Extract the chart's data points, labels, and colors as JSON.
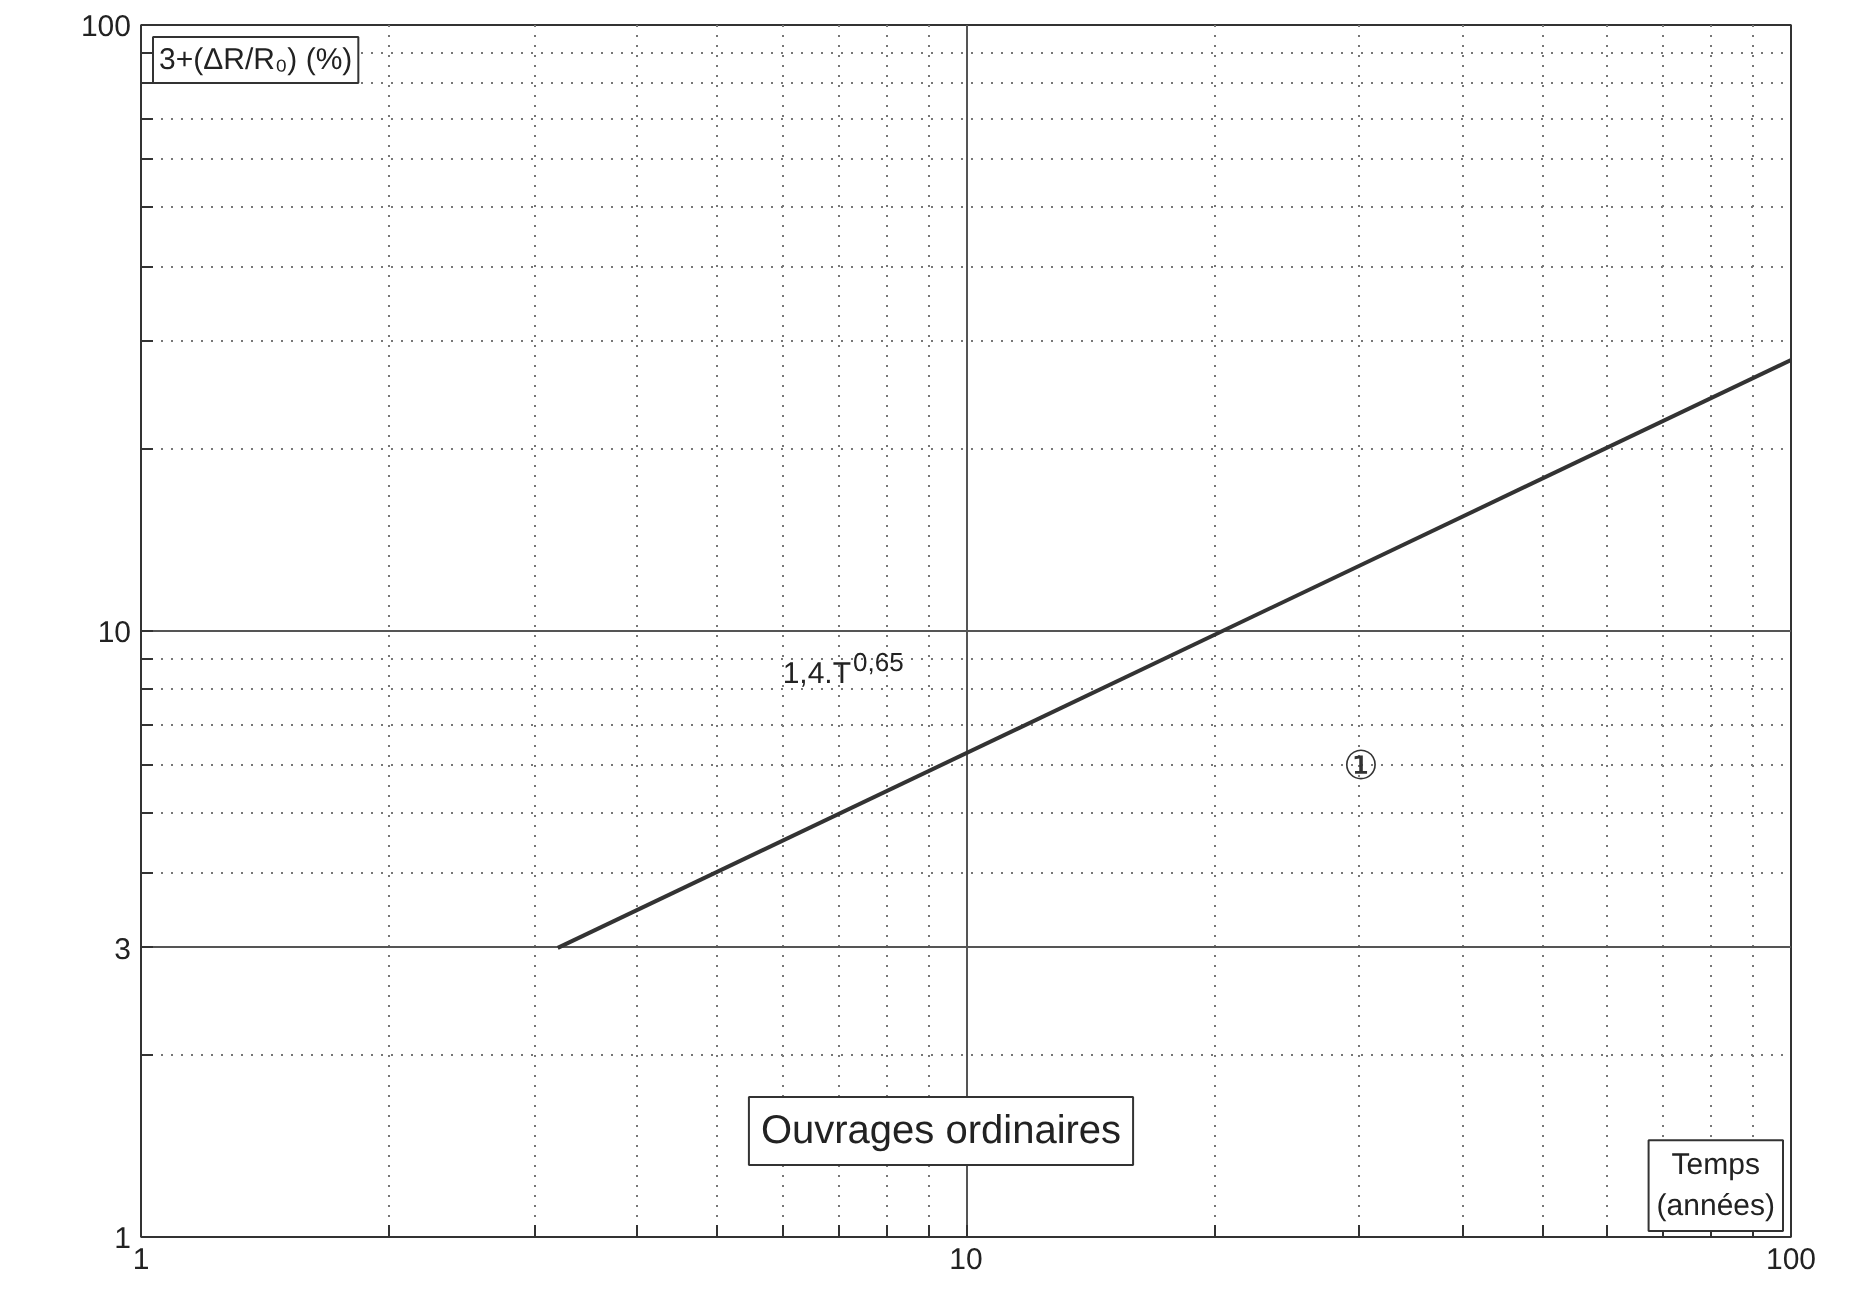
{
  "chart_data": {
    "type": "line",
    "xlabel": "Temps (années)",
    "ylabel": "3+(ΔR/R₀) (%)",
    "log": "xy",
    "xlim": [
      1,
      100
    ],
    "ylim": [
      1,
      100
    ],
    "xticks": [
      1,
      {
        "value": 2,
        "label": null
      },
      {
        "value": 3,
        "label": null
      },
      {
        "value": 4,
        "label": null
      },
      {
        "value": 5,
        "label": null
      },
      {
        "value": 6,
        "label": null
      },
      {
        "value": 7,
        "label": null
      },
      {
        "value": 8,
        "label": null
      },
      {
        "value": 9,
        "label": null
      },
      10,
      {
        "value": 20,
        "label": null
      },
      {
        "value": 30,
        "label": null
      },
      {
        "value": 40,
        "label": null
      },
      {
        "value": 50,
        "label": null
      },
      {
        "value": 60,
        "label": null
      },
      {
        "value": 70,
        "label": null
      },
      {
        "value": 80,
        "label": null
      },
      {
        "value": 90,
        "label": null
      },
      100
    ],
    "yticks": [
      1,
      {
        "value": 2,
        "label": null
      },
      3,
      {
        "value": 4,
        "label": null
      },
      {
        "value": 5,
        "label": null
      },
      {
        "value": 6,
        "label": null
      },
      {
        "value": 7,
        "label": null
      },
      {
        "value": 8,
        "label": null
      },
      {
        "value": 9,
        "label": null
      },
      10,
      {
        "value": 20,
        "label": null
      },
      {
        "value": 30,
        "label": null
      },
      {
        "value": 40,
        "label": null
      },
      {
        "value": 50,
        "label": null
      },
      {
        "value": 60,
        "label": null
      },
      {
        "value": 70,
        "label": null
      },
      {
        "value": 80,
        "label": null
      },
      {
        "value": 90,
        "label": null
      },
      100
    ],
    "grid": true,
    "line_style": "solid",
    "series": [
      {
        "color": "#333333",
        "x": [
          3.2,
          100
        ],
        "values": [
          3,
          28
        ]
      }
    ],
    "annotations": [
      "1,4.T$^{0,65}$",
      "①",
      "Ouvrages ordinaires"
    ]
  }
}
